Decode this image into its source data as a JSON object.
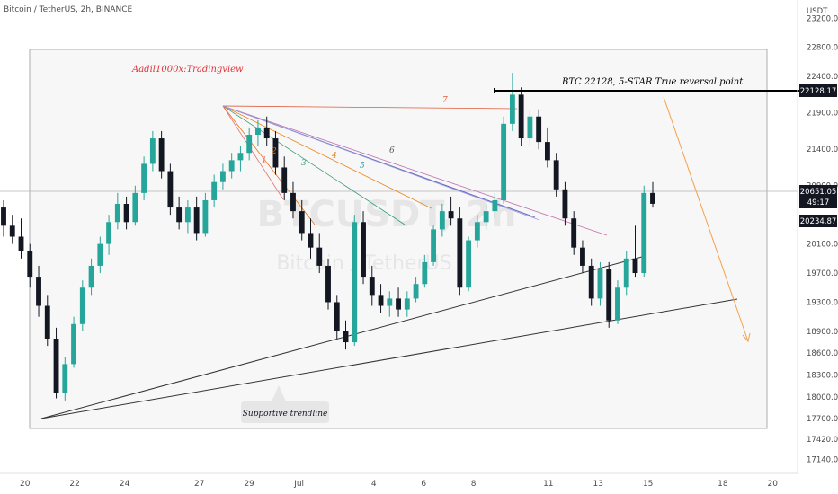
{
  "header": {
    "symbol_line": "Bitcoin / TetherUS, 2h, BINANCE"
  },
  "chart_data": {
    "type": "candlestick",
    "currency": "USDT",
    "watermark": {
      "ticker": "BTCUSDT, 2h",
      "name": "Bitcoin / TetherUS"
    },
    "y_axis": {
      "range": [
        16950,
        23450
      ],
      "ticks": [
        23200,
        22800,
        22400,
        21900,
        21400,
        20900,
        20100,
        19700,
        19300,
        18900,
        18600,
        18300,
        18000,
        17700,
        17420,
        17140
      ],
      "tick_labels": [
        "23200.00",
        "22800.00",
        "22400.00",
        "21900.00",
        "21400.00",
        "20900.00",
        "20100.00",
        "19700.00",
        "19300.00",
        "18900.00",
        "18600.00",
        "18300.00",
        "18000.00",
        "17700.00",
        "17420.00",
        "17140.00"
      ]
    },
    "x_axis": {
      "range": [
        17.5,
        21.0
      ],
      "ticks": [
        {
          "label": "20",
          "pos": 18.0
        },
        {
          "label": "22",
          "pos": 19.0
        },
        {
          "label": "24",
          "pos": 20.0
        },
        {
          "label": "27",
          "pos": 21.5
        },
        {
          "label": "29",
          "pos": 22.5
        },
        {
          "label": "Jul",
          "pos": 23.5
        },
        {
          "label": "4",
          "pos": 25.0
        },
        {
          "label": "6",
          "pos": 26.0
        },
        {
          "label": "8",
          "pos": 27.0
        },
        {
          "label": "11",
          "pos": 28.5
        },
        {
          "label": "13",
          "pos": 29.5
        },
        {
          "label": "15",
          "pos": 30.5
        },
        {
          "label": "18",
          "pos": 32.0
        },
        {
          "label": "20",
          "pos": 33.0
        }
      ]
    },
    "price_labels": {
      "current": {
        "value": 20651.05,
        "text": "20651.05",
        "countdown": "49:17",
        "color": "#131722"
      },
      "level": {
        "value": 22128.17,
        "text": "22128.17",
        "color": "#131722"
      },
      "lower": {
        "value": 20234.87,
        "text": "20234.87",
        "color": "#131722"
      }
    },
    "candles_ohlc": [
      [
        20600,
        20700,
        20200,
        20350
      ],
      [
        20350,
        20500,
        20100,
        20200
      ],
      [
        20200,
        20450,
        19900,
        20000
      ],
      [
        20000,
        20100,
        19500,
        19650
      ],
      [
        19650,
        19800,
        19100,
        19250
      ],
      [
        19250,
        19400,
        18700,
        18800
      ],
      [
        18800,
        18950,
        17980,
        18050
      ],
      [
        18050,
        18550,
        17950,
        18450
      ],
      [
        18450,
        19100,
        18400,
        19000
      ],
      [
        19000,
        19600,
        18900,
        19500
      ],
      [
        19500,
        19900,
        19400,
        19800
      ],
      [
        19800,
        20200,
        19700,
        20100
      ],
      [
        20100,
        20500,
        19950,
        20400
      ],
      [
        20400,
        20800,
        20300,
        20650
      ],
      [
        20650,
        20750,
        20300,
        20400
      ],
      [
        20400,
        20900,
        20350,
        20800
      ],
      [
        20800,
        21300,
        20700,
        21200
      ],
      [
        21200,
        21650,
        21100,
        21550
      ],
      [
        21550,
        21650,
        21000,
        21100
      ],
      [
        21100,
        21200,
        20500,
        20600
      ],
      [
        20600,
        20750,
        20300,
        20400
      ],
      [
        20400,
        20700,
        20250,
        20600
      ],
      [
        20600,
        20750,
        20150,
        20250
      ],
      [
        20250,
        20800,
        20200,
        20700
      ],
      [
        20700,
        21050,
        20600,
        20950
      ],
      [
        20950,
        21200,
        20850,
        21100
      ],
      [
        21100,
        21350,
        21000,
        21250
      ],
      [
        21250,
        21450,
        21100,
        21350
      ],
      [
        21350,
        21700,
        21250,
        21600
      ],
      [
        21600,
        21800,
        21450,
        21700
      ],
      [
        21700,
        21850,
        21450,
        21550
      ],
      [
        21550,
        21650,
        21050,
        21150
      ],
      [
        21150,
        21300,
        20700,
        20800
      ],
      [
        20800,
        20950,
        20450,
        20550
      ],
      [
        20550,
        20700,
        20150,
        20250
      ],
      [
        20250,
        20450,
        19900,
        20050
      ],
      [
        20050,
        20250,
        19700,
        19800
      ],
      [
        19800,
        19900,
        19200,
        19300
      ],
      [
        19300,
        19400,
        18800,
        18900
      ],
      [
        18900,
        19050,
        18650,
        18750
      ],
      [
        18750,
        20500,
        18700,
        20400
      ],
      [
        20400,
        20550,
        19550,
        19650
      ],
      [
        19650,
        19800,
        19250,
        19400
      ],
      [
        19400,
        19550,
        19150,
        19250
      ],
      [
        19250,
        19450,
        19100,
        19350
      ],
      [
        19350,
        19500,
        19100,
        19200
      ],
      [
        19200,
        19450,
        19100,
        19350
      ],
      [
        19350,
        19650,
        19300,
        19550
      ],
      [
        19550,
        19950,
        19500,
        19850
      ],
      [
        19850,
        20350,
        19800,
        20300
      ],
      [
        20300,
        20650,
        20200,
        20550
      ],
      [
        20550,
        20750,
        20350,
        20450
      ],
      [
        20450,
        20600,
        19400,
        19500
      ],
      [
        19500,
        20200,
        19450,
        20150
      ],
      [
        20150,
        20500,
        20050,
        20400
      ],
      [
        20400,
        20650,
        20300,
        20550
      ],
      [
        20550,
        20800,
        20450,
        20700
      ],
      [
        20700,
        21850,
        20650,
        21750
      ],
      [
        21750,
        22450,
        21650,
        22150
      ],
      [
        22150,
        22250,
        21450,
        21550
      ],
      [
        21550,
        21950,
        21450,
        21850
      ],
      [
        21850,
        21950,
        21400,
        21500
      ],
      [
        21500,
        21700,
        21150,
        21250
      ],
      [
        21250,
        21350,
        20750,
        20850
      ],
      [
        20850,
        20950,
        20350,
        20450
      ],
      [
        20450,
        20550,
        19950,
        20050
      ],
      [
        20050,
        20150,
        19700,
        19800
      ],
      [
        19800,
        19900,
        19250,
        19350
      ],
      [
        19350,
        19850,
        19250,
        19750
      ],
      [
        19750,
        19850,
        18950,
        19050
      ],
      [
        19050,
        19600,
        19000,
        19500
      ],
      [
        19500,
        20000,
        19400,
        19900
      ],
      [
        19900,
        20350,
        19650,
        19700
      ],
      [
        19700,
        20900,
        19650,
        20800
      ],
      [
        20800,
        20950,
        20600,
        20651
      ]
    ],
    "annotations": [
      {
        "type": "text",
        "text": "Aadil1000x:Tradingview",
        "color": "#e0333a"
      },
      {
        "type": "text",
        "text": "BTC 22128, 5-STAR True reversal point",
        "color": "#000000"
      },
      {
        "type": "callout",
        "text": "Supportive trendline"
      },
      {
        "type": "fan_label",
        "text": "1",
        "color": "#e87070"
      },
      {
        "type": "fan_label",
        "text": "2",
        "color": "#e8721a"
      },
      {
        "type": "fan_label",
        "text": "3",
        "color": "#3d9a7a"
      },
      {
        "type": "fan_label",
        "text": "4",
        "color": "#e8821a"
      },
      {
        "type": "fan_label",
        "text": "5",
        "color": "#2aa0b8"
      },
      {
        "type": "fan_label",
        "text": "6",
        "color": "#555555"
      },
      {
        "type": "fan_label",
        "text": "7",
        "color": "#e05a3a"
      }
    ],
    "grid": false,
    "legend": "none"
  },
  "colors": {
    "up": "#26a69a",
    "down": "#131722",
    "frame_fill": "#f7f7f7",
    "frame_stroke": "#9a9a9a",
    "axis_text": "#4a4a4a",
    "projection_arrow": "#f5a04a",
    "trendline": "#333333"
  }
}
